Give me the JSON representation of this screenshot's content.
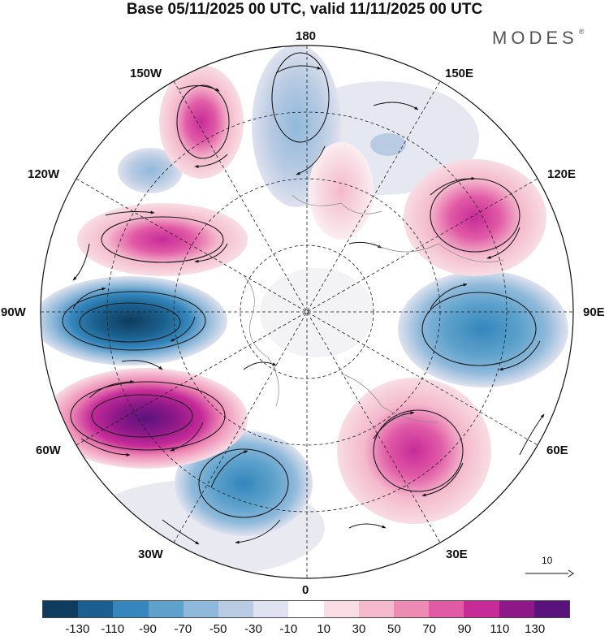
{
  "header": {
    "title": "Base 05/11/2025 00 UTC, valid 11/11/2025 00 UTC",
    "brand": "MODES",
    "brand_mark": "®"
  },
  "map": {
    "projection": "north polar stereographic",
    "field": "geopotential height anomaly with wind vectors",
    "longitude_labels": {
      "180": "180",
      "150E": "150E",
      "120E": "120E",
      "90E": "90E",
      "60E": "60E",
      "30E": "30E",
      "0": "0",
      "30W": "30W",
      "60W": "60W",
      "90W": "90W",
      "120W": "120W",
      "150W": "150W"
    },
    "reference_vector": {
      "label": "10"
    }
  },
  "colorbar": {
    "colors": [
      "#0f3c5e",
      "#1a5f8d",
      "#3486bc",
      "#5ea2cc",
      "#8fb9da",
      "#b9cbe3",
      "#dfe2ef",
      "#ffffff",
      "#f8dde4",
      "#f4b9cc",
      "#ee8bb5",
      "#e15aa6",
      "#c62b98",
      "#8e1888",
      "#5a137c"
    ],
    "tick_labels": [
      "-130",
      "-110",
      "-90",
      "-70",
      "-50",
      "-30",
      "-10",
      "10",
      "30",
      "50",
      "70",
      "90",
      "110",
      "130"
    ]
  }
}
